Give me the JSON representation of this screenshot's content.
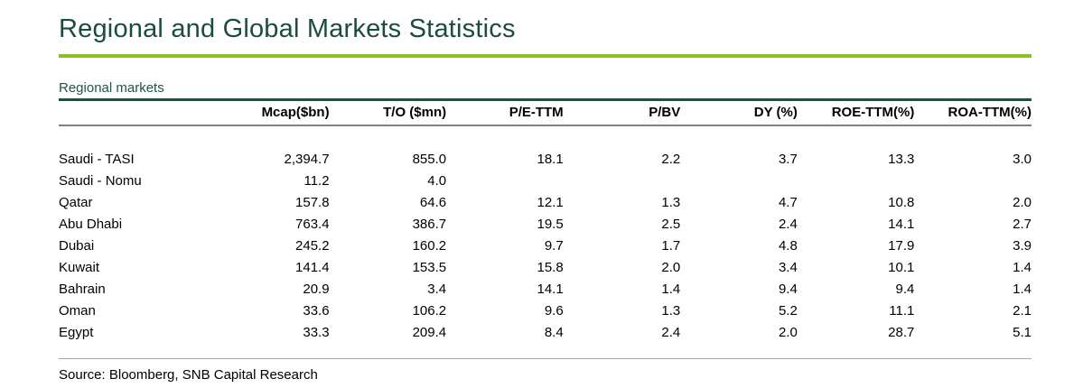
{
  "header": {
    "title": "Regional and Global Markets Statistics"
  },
  "section": {
    "label": "Regional markets"
  },
  "table": {
    "columns": [
      "Mcap($bn)",
      "T/O ($mn)",
      "P/E-TTM",
      "P/BV",
      "DY (%)",
      "ROE-TTM(%)",
      "ROA-TTM(%)"
    ],
    "rows": [
      {
        "label": "Saudi - TASI",
        "values": [
          "2,394.7",
          "855.0",
          "18.1",
          "2.2",
          "3.7",
          "13.3",
          "3.0"
        ]
      },
      {
        "label": "Saudi - Nomu",
        "values": [
          "11.2",
          "4.0",
          "",
          "",
          "",
          "",
          ""
        ]
      },
      {
        "label": "Qatar",
        "values": [
          "157.8",
          "64.6",
          "12.1",
          "1.3",
          "4.7",
          "10.8",
          "2.0"
        ]
      },
      {
        "label": "Abu Dhabi",
        "values": [
          "763.4",
          "386.7",
          "19.5",
          "2.5",
          "2.4",
          "14.1",
          "2.7"
        ]
      },
      {
        "label": "Dubai",
        "values": [
          "245.2",
          "160.2",
          "9.7",
          "1.7",
          "4.8",
          "17.9",
          "3.9"
        ]
      },
      {
        "label": "Kuwait",
        "values": [
          "141.4",
          "153.5",
          "15.8",
          "2.0",
          "3.4",
          "10.1",
          "1.4"
        ]
      },
      {
        "label": "Bahrain",
        "values": [
          "20.9",
          "3.4",
          "14.1",
          "1.4",
          "9.4",
          "9.4",
          "1.4"
        ]
      },
      {
        "label": "Oman",
        "values": [
          "33.6",
          "106.2",
          "9.6",
          "1.3",
          "5.2",
          "11.1",
          "2.1"
        ]
      },
      {
        "label": "Egypt",
        "values": [
          "33.3",
          "209.4",
          "8.4",
          "2.4",
          "2.0",
          "28.7",
          "5.1"
        ]
      }
    ]
  },
  "footer": {
    "source": "Source: Bloomberg, SNB Capital Research"
  },
  "colors": {
    "title_green": "#1b4d3d",
    "accent_lime": "#8ebe26",
    "section_teal": "#1d4f42",
    "header_rule_gray": "#808080",
    "bottom_rule_gray": "#a6a6a6"
  }
}
